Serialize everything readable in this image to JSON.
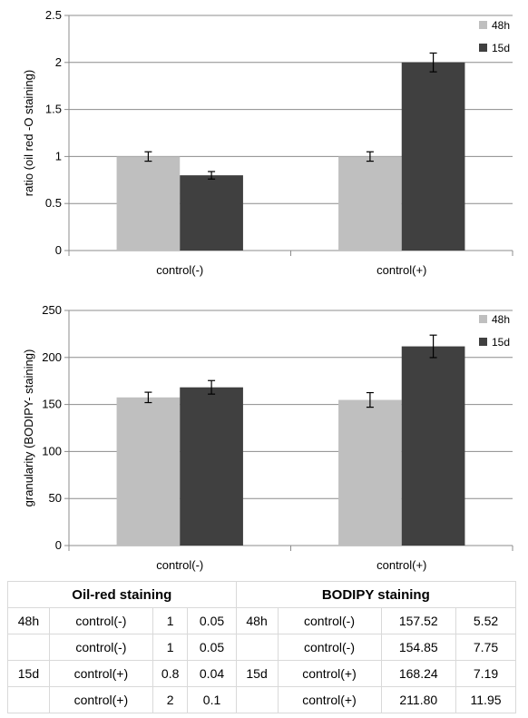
{
  "chart_data": [
    {
      "type": "bar",
      "categories": [
        "control(-)",
        "control(+)"
      ],
      "series": [
        {
          "name": "48h",
          "values": [
            1.0,
            1.0
          ],
          "errors": [
            0.05,
            0.05
          ],
          "color": "#bfbfbf"
        },
        {
          "name": "15d",
          "values": [
            0.8,
            2.0
          ],
          "errors": [
            0.04,
            0.1
          ],
          "color": "#404040"
        }
      ],
      "ylabel": "ratio (oil red -O staining)",
      "ylim": [
        0,
        2.5
      ],
      "yticks": [
        "0",
        "0.5",
        "1",
        "1.5",
        "2",
        "2.5"
      ],
      "grid": true,
      "legend_position": "top-right"
    },
    {
      "type": "bar",
      "categories": [
        "control(-)",
        "control(+)"
      ],
      "series": [
        {
          "name": "48h",
          "values": [
            157.52,
            154.85
          ],
          "errors": [
            5.52,
            7.75
          ],
          "color": "#bfbfbf"
        },
        {
          "name": "15d",
          "values": [
            168.24,
            211.8
          ],
          "errors": [
            7.19,
            11.95
          ],
          "color": "#404040"
        }
      ],
      "ylabel": "granularity (BODIPY- staining)",
      "ylim": [
        0,
        250
      ],
      "yticks": [
        "0",
        "50",
        "100",
        "150",
        "200",
        "250"
      ],
      "grid": true,
      "legend_position": "top-right"
    }
  ],
  "table": {
    "header_left": "Oil-red staining",
    "header_right": "BODIPY staining",
    "rows": [
      [
        "48h",
        "control(-)",
        "1",
        "0.05",
        "48h",
        "control(-)",
        "157.52",
        "5.52"
      ],
      [
        "",
        "control(-)",
        "1",
        "0.05",
        "",
        "control(-)",
        "154.85",
        "7.75"
      ],
      [
        "15d",
        "control(+)",
        "0.8",
        "0.04",
        "15d",
        "control(+)",
        "168.24",
        "7.19"
      ],
      [
        "",
        "control(+)",
        "2",
        "0.1",
        "",
        "control(+)",
        "211.80",
        "11.95"
      ]
    ]
  }
}
